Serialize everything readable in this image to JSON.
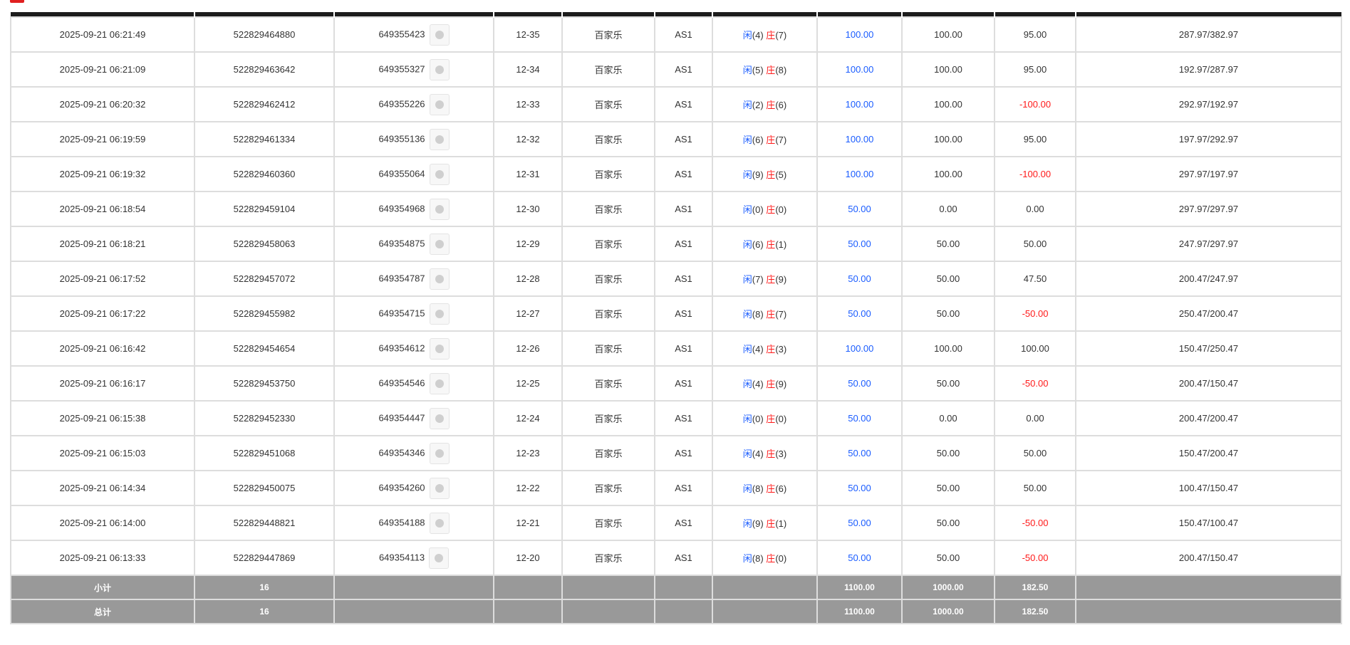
{
  "colors": {
    "bet_blue": "#1a5cff",
    "negative_red": "#ff1a1a",
    "header": "#1c1c1c",
    "summary_bg": "#999999"
  },
  "player_label": "闲",
  "banker_label": "庄",
  "rows": [
    {
      "time": "2025-09-21 06:21:49",
      "order": "522829464880",
      "round": "649355423",
      "shoe": "12-35",
      "game": "百家乐",
      "table": "AS1",
      "player": "4",
      "banker": "7",
      "bet": "100.00",
      "valid": "100.00",
      "win": "95.00",
      "balance": "287.97/382.97"
    },
    {
      "time": "2025-09-21 06:21:09",
      "order": "522829463642",
      "round": "649355327",
      "shoe": "12-34",
      "game": "百家乐",
      "table": "AS1",
      "player": "5",
      "banker": "8",
      "bet": "100.00",
      "valid": "100.00",
      "win": "95.00",
      "balance": "192.97/287.97"
    },
    {
      "time": "2025-09-21 06:20:32",
      "order": "522829462412",
      "round": "649355226",
      "shoe": "12-33",
      "game": "百家乐",
      "table": "AS1",
      "player": "2",
      "banker": "6",
      "bet": "100.00",
      "valid": "100.00",
      "win": "-100.00",
      "balance": "292.97/192.97"
    },
    {
      "time": "2025-09-21 06:19:59",
      "order": "522829461334",
      "round": "649355136",
      "shoe": "12-32",
      "game": "百家乐",
      "table": "AS1",
      "player": "6",
      "banker": "7",
      "bet": "100.00",
      "valid": "100.00",
      "win": "95.00",
      "balance": "197.97/292.97"
    },
    {
      "time": "2025-09-21 06:19:32",
      "order": "522829460360",
      "round": "649355064",
      "shoe": "12-31",
      "game": "百家乐",
      "table": "AS1",
      "player": "9",
      "banker": "5",
      "bet": "100.00",
      "valid": "100.00",
      "win": "-100.00",
      "balance": "297.97/197.97"
    },
    {
      "time": "2025-09-21 06:18:54",
      "order": "522829459104",
      "round": "649354968",
      "shoe": "12-30",
      "game": "百家乐",
      "table": "AS1",
      "player": "0",
      "banker": "0",
      "bet": "50.00",
      "valid": "0.00",
      "win": "0.00",
      "balance": "297.97/297.97"
    },
    {
      "time": "2025-09-21 06:18:21",
      "order": "522829458063",
      "round": "649354875",
      "shoe": "12-29",
      "game": "百家乐",
      "table": "AS1",
      "player": "6",
      "banker": "1",
      "bet": "50.00",
      "valid": "50.00",
      "win": "50.00",
      "balance": "247.97/297.97"
    },
    {
      "time": "2025-09-21 06:17:52",
      "order": "522829457072",
      "round": "649354787",
      "shoe": "12-28",
      "game": "百家乐",
      "table": "AS1",
      "player": "7",
      "banker": "9",
      "bet": "50.00",
      "valid": "50.00",
      "win": "47.50",
      "balance": "200.47/247.97"
    },
    {
      "time": "2025-09-21 06:17:22",
      "order": "522829455982",
      "round": "649354715",
      "shoe": "12-27",
      "game": "百家乐",
      "table": "AS1",
      "player": "8",
      "banker": "7",
      "bet": "50.00",
      "valid": "50.00",
      "win": "-50.00",
      "balance": "250.47/200.47"
    },
    {
      "time": "2025-09-21 06:16:42",
      "order": "522829454654",
      "round": "649354612",
      "shoe": "12-26",
      "game": "百家乐",
      "table": "AS1",
      "player": "4",
      "banker": "3",
      "bet": "100.00",
      "valid": "100.00",
      "win": "100.00",
      "balance": "150.47/250.47"
    },
    {
      "time": "2025-09-21 06:16:17",
      "order": "522829453750",
      "round": "649354546",
      "shoe": "12-25",
      "game": "百家乐",
      "table": "AS1",
      "player": "4",
      "banker": "9",
      "bet": "50.00",
      "valid": "50.00",
      "win": "-50.00",
      "balance": "200.47/150.47"
    },
    {
      "time": "2025-09-21 06:15:38",
      "order": "522829452330",
      "round": "649354447",
      "shoe": "12-24",
      "game": "百家乐",
      "table": "AS1",
      "player": "0",
      "banker": "0",
      "bet": "50.00",
      "valid": "0.00",
      "win": "0.00",
      "balance": "200.47/200.47"
    },
    {
      "time": "2025-09-21 06:15:03",
      "order": "522829451068",
      "round": "649354346",
      "shoe": "12-23",
      "game": "百家乐",
      "table": "AS1",
      "player": "4",
      "banker": "3",
      "bet": "50.00",
      "valid": "50.00",
      "win": "50.00",
      "balance": "150.47/200.47"
    },
    {
      "time": "2025-09-21 06:14:34",
      "order": "522829450075",
      "round": "649354260",
      "shoe": "12-22",
      "game": "百家乐",
      "table": "AS1",
      "player": "8",
      "banker": "6",
      "bet": "50.00",
      "valid": "50.00",
      "win": "50.00",
      "balance": "100.47/150.47"
    },
    {
      "time": "2025-09-21 06:14:00",
      "order": "522829448821",
      "round": "649354188",
      "shoe": "12-21",
      "game": "百家乐",
      "table": "AS1",
      "player": "9",
      "banker": "1",
      "bet": "50.00",
      "valid": "50.00",
      "win": "-50.00",
      "balance": "150.47/100.47"
    },
    {
      "time": "2025-09-21 06:13:33",
      "order": "522829447869",
      "round": "649354113",
      "shoe": "12-20",
      "game": "百家乐",
      "table": "AS1",
      "player": "8",
      "banker": "0",
      "bet": "50.00",
      "valid": "50.00",
      "win": "-50.00",
      "balance": "200.47/150.47"
    }
  ],
  "subtotal": {
    "label": "小计",
    "count": "16",
    "bet": "1100.00",
    "valid": "1000.00",
    "win": "182.50"
  },
  "total": {
    "label": "总计",
    "count": "16",
    "bet": "1100.00",
    "valid": "1000.00",
    "win": "182.50"
  }
}
